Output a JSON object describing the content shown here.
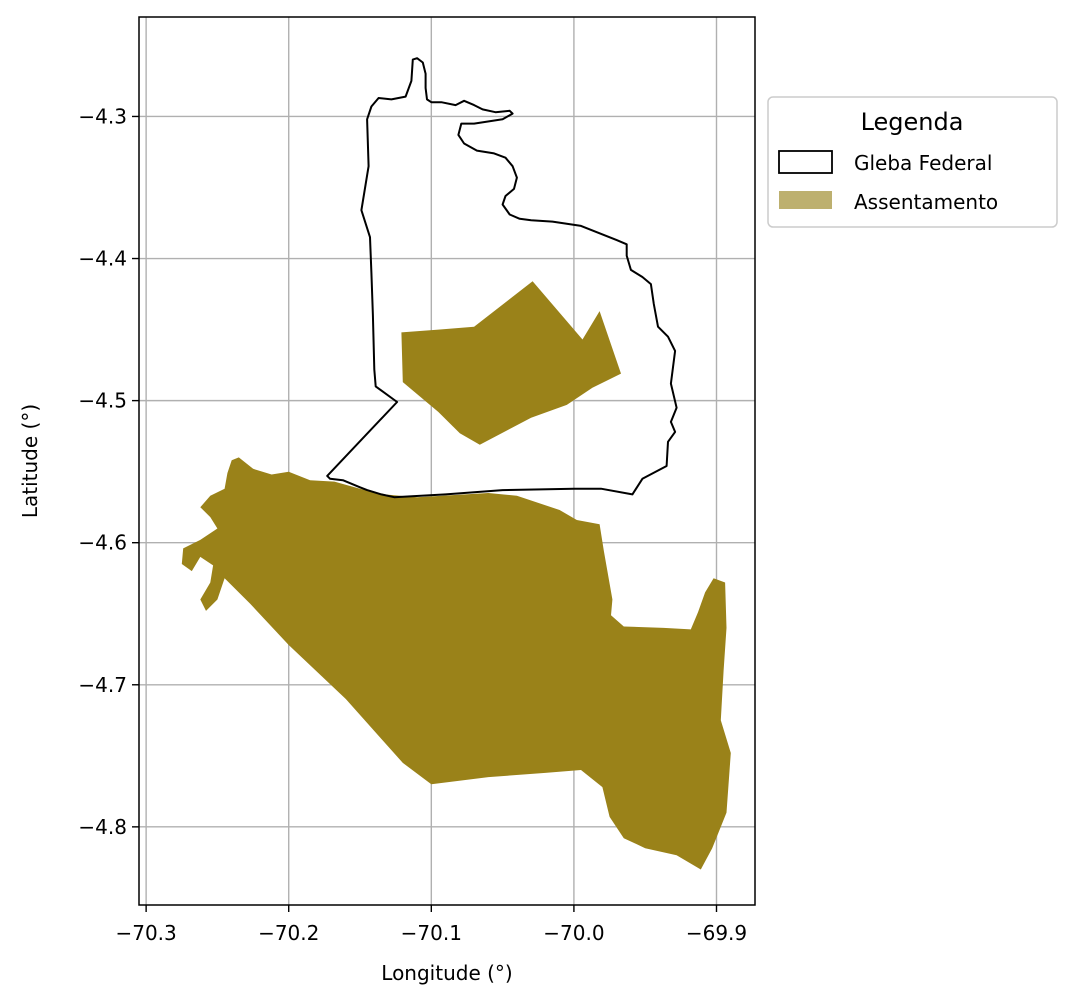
{
  "chart_data": {
    "type": "map",
    "xlabel": "Longitude (°)",
    "ylabel": "Latitude (°)",
    "xlim": [
      -70.305,
      -69.873
    ],
    "ylim": [
      -4.855,
      -4.23
    ],
    "x_ticks": [
      -70.3,
      -70.2,
      -70.1,
      -70.0,
      -69.9
    ],
    "x_tick_labels": [
      "−70.3",
      "−70.2",
      "−70.1",
      "−70.0",
      "−69.9"
    ],
    "y_ticks": [
      -4.3,
      -4.4,
      -4.5,
      -4.6,
      -4.7,
      -4.8
    ],
    "y_tick_labels": [
      "−4.3",
      "−4.4",
      "−4.5",
      "−4.6",
      "−4.7",
      "−4.8"
    ],
    "grid": true,
    "legend": {
      "title": "Legenda",
      "placement": "upper-right-outside",
      "entries": [
        {
          "label": "Gleba Federal",
          "style": "outline",
          "color": "#000000"
        },
        {
          "label": "Assentamento",
          "style": "fill",
          "color": "#bdb06f"
        }
      ]
    },
    "layers": {
      "gleba_federal": {
        "name": "Gleba Federal",
        "edge_color": "#000000",
        "fill": "none",
        "polygon": [
          [
            -70.171,
            -4.555
          ],
          [
            -70.162,
            -4.556
          ],
          [
            -70.15,
            -4.561
          ],
          [
            -70.145,
            -4.563
          ],
          [
            -70.135,
            -4.566
          ],
          [
            -70.126,
            -4.568
          ],
          [
            -70.09,
            -4.566
          ],
          [
            -70.05,
            -4.563
          ],
          [
            -70.0,
            -4.562
          ],
          [
            -69.981,
            -4.562
          ],
          [
            -69.959,
            -4.566
          ],
          [
            -69.952,
            -4.555
          ],
          [
            -69.935,
            -4.546
          ],
          [
            -69.934,
            -4.529
          ],
          [
            -69.929,
            -4.522
          ],
          [
            -69.932,
            -4.515
          ],
          [
            -69.928,
            -4.505
          ],
          [
            -69.932,
            -4.488
          ],
          [
            -69.929,
            -4.465
          ],
          [
            -69.934,
            -4.455
          ],
          [
            -69.941,
            -4.448
          ],
          [
            -69.944,
            -4.432
          ],
          [
            -69.946,
            -4.418
          ],
          [
            -69.952,
            -4.413
          ],
          [
            -69.96,
            -4.408
          ],
          [
            -69.963,
            -4.398
          ],
          [
            -69.963,
            -4.39
          ],
          [
            -69.97,
            -4.387
          ],
          [
            -69.995,
            -4.377
          ],
          [
            -70.015,
            -4.374
          ],
          [
            -70.03,
            -4.373
          ],
          [
            -70.038,
            -4.372
          ],
          [
            -70.045,
            -4.369
          ],
          [
            -70.05,
            -4.362
          ],
          [
            -70.048,
            -4.356
          ],
          [
            -70.042,
            -4.351
          ],
          [
            -70.04,
            -4.343
          ],
          [
            -70.043,
            -4.335
          ],
          [
            -70.048,
            -4.329
          ],
          [
            -70.056,
            -4.326
          ],
          [
            -70.068,
            -4.324
          ],
          [
            -70.077,
            -4.319
          ],
          [
            -70.081,
            -4.313
          ],
          [
            -70.079,
            -4.305
          ],
          [
            -70.07,
            -4.305
          ],
          [
            -70.05,
            -4.302
          ],
          [
            -70.043,
            -4.298
          ],
          [
            -70.045,
            -4.296
          ],
          [
            -70.055,
            -4.297
          ],
          [
            -70.064,
            -4.295
          ],
          [
            -70.07,
            -4.292
          ],
          [
            -70.077,
            -4.289
          ],
          [
            -70.083,
            -4.292
          ],
          [
            -70.093,
            -4.29
          ],
          [
            -70.1,
            -4.29
          ],
          [
            -70.103,
            -4.288
          ],
          [
            -70.104,
            -4.28
          ],
          [
            -70.104,
            -4.27
          ],
          [
            -70.106,
            -4.262
          ],
          [
            -70.11,
            -4.259
          ],
          [
            -70.113,
            -4.26
          ],
          [
            -70.114,
            -4.275
          ],
          [
            -70.118,
            -4.286
          ],
          [
            -70.128,
            -4.288
          ],
          [
            -70.137,
            -4.287
          ],
          [
            -70.142,
            -4.293
          ],
          [
            -70.145,
            -4.302
          ],
          [
            -70.144,
            -4.335
          ],
          [
            -70.149,
            -4.366
          ],
          [
            -70.143,
            -4.385
          ],
          [
            -70.142,
            -4.41
          ],
          [
            -70.141,
            -4.44
          ],
          [
            -70.14,
            -4.478
          ],
          [
            -70.139,
            -4.49
          ],
          [
            -70.124,
            -4.501
          ],
          [
            -70.173,
            -4.553
          ]
        ]
      },
      "assentamentos": {
        "name": "Assentamento",
        "fill_color": "#9a8219",
        "polygons": [
          [
            [
              -70.121,
              -4.452
            ],
            [
              -70.095,
              -4.45
            ],
            [
              -70.07,
              -4.448
            ],
            [
              -70.029,
              -4.416
            ],
            [
              -69.994,
              -4.457
            ],
            [
              -69.982,
              -4.437
            ],
            [
              -69.967,
              -4.481
            ],
            [
              -69.987,
              -4.491
            ],
            [
              -70.005,
              -4.503
            ],
            [
              -70.03,
              -4.512
            ],
            [
              -70.066,
              -4.531
            ],
            [
              -70.08,
              -4.523
            ],
            [
              -70.095,
              -4.508
            ],
            [
              -70.12,
              -4.487
            ]
          ],
          [
            [
              -70.24,
              -4.542
            ],
            [
              -70.235,
              -4.54
            ],
            [
              -70.225,
              -4.548
            ],
            [
              -70.212,
              -4.552
            ],
            [
              -70.2,
              -4.55
            ],
            [
              -70.185,
              -4.556
            ],
            [
              -70.168,
              -4.557
            ],
            [
              -70.15,
              -4.562
            ],
            [
              -70.133,
              -4.566
            ],
            [
              -70.11,
              -4.568
            ],
            [
              -70.06,
              -4.565
            ],
            [
              -70.04,
              -4.567
            ],
            [
              -70.01,
              -4.577
            ],
            [
              -69.998,
              -4.584
            ],
            [
              -69.982,
              -4.587
            ],
            [
              -69.979,
              -4.606
            ],
            [
              -69.973,
              -4.64
            ],
            [
              -69.974,
              -4.651
            ],
            [
              -69.965,
              -4.659
            ],
            [
              -69.937,
              -4.66
            ],
            [
              -69.918,
              -4.661
            ],
            [
              -69.913,
              -4.649
            ],
            [
              -69.908,
              -4.635
            ],
            [
              -69.902,
              -4.625
            ],
            [
              -69.894,
              -4.628
            ],
            [
              -69.893,
              -4.66
            ],
            [
              -69.895,
              -4.69
            ],
            [
              -69.897,
              -4.725
            ],
            [
              -69.89,
              -4.748
            ],
            [
              -69.893,
              -4.79
            ],
            [
              -69.903,
              -4.815
            ],
            [
              -69.911,
              -4.83
            ],
            [
              -69.928,
              -4.82
            ],
            [
              -69.95,
              -4.815
            ],
            [
              -69.965,
              -4.808
            ],
            [
              -69.975,
              -4.793
            ],
            [
              -69.98,
              -4.772
            ],
            [
              -69.995,
              -4.76
            ],
            [
              -70.02,
              -4.762
            ],
            [
              -70.06,
              -4.765
            ],
            [
              -70.1,
              -4.77
            ],
            [
              -70.12,
              -4.755
            ],
            [
              -70.16,
              -4.71
            ],
            [
              -70.2,
              -4.672
            ],
            [
              -70.227,
              -4.643
            ],
            [
              -70.245,
              -4.625
            ],
            [
              -70.25,
              -4.64
            ],
            [
              -70.258,
              -4.648
            ],
            [
              -70.262,
              -4.64
            ],
            [
              -70.255,
              -4.628
            ],
            [
              -70.253,
              -4.616
            ],
            [
              -70.262,
              -4.61
            ],
            [
              -70.268,
              -4.62
            ],
            [
              -70.275,
              -4.615
            ],
            [
              -70.274,
              -4.604
            ],
            [
              -70.262,
              -4.598
            ],
            [
              -70.25,
              -4.59
            ],
            [
              -70.255,
              -4.582
            ],
            [
              -70.262,
              -4.575
            ],
            [
              -70.255,
              -4.567
            ],
            [
              -70.245,
              -4.562
            ],
            [
              -70.243,
              -4.551
            ]
          ]
        ]
      }
    }
  }
}
